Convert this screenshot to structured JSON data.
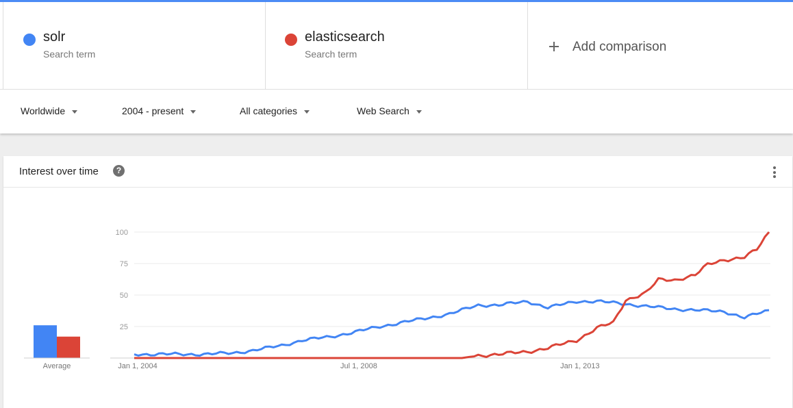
{
  "terms": [
    {
      "name": "solr",
      "subtitle": "Search term",
      "color": "#4285f4"
    },
    {
      "name": "elasticsearch",
      "subtitle": "Search term",
      "color": "#db4437"
    }
  ],
  "add_comparison": {
    "label": "Add comparison",
    "icon": "plus-icon"
  },
  "filters": {
    "region": "Worldwide",
    "time_range": "2004 - present",
    "category": "All categories",
    "search_type": "Web Search"
  },
  "card": {
    "title": "Interest over time",
    "help_icon": "question-circle-icon",
    "menu_icon": "more-vert-icon"
  },
  "chart_data": {
    "type": "line",
    "title": "Interest over time",
    "x_axis": {
      "start": "2004-01",
      "end": "2016-12",
      "interval": "monthly",
      "tick_labels": [
        "Jan 1, 2004",
        "Jul 1, 2008",
        "Jan 1, 2013"
      ]
    },
    "y_axis": {
      "ylim": [
        0,
        100
      ],
      "ticks": [
        25,
        50,
        75,
        100
      ]
    },
    "grid": true,
    "series": [
      {
        "name": "solr",
        "color": "#4285f4",
        "anchors": [
          [
            "2004-01",
            3
          ],
          [
            "2004-06",
            3
          ],
          [
            "2005-01",
            3
          ],
          [
            "2005-06",
            3
          ],
          [
            "2006-01",
            4
          ],
          [
            "2006-06",
            6
          ],
          [
            "2007-01",
            10
          ],
          [
            "2007-06",
            14
          ],
          [
            "2008-01",
            17
          ],
          [
            "2008-06",
            20
          ],
          [
            "2009-01",
            25
          ],
          [
            "2009-06",
            28
          ],
          [
            "2010-01",
            32
          ],
          [
            "2010-06",
            35
          ],
          [
            "2011-01",
            42
          ],
          [
            "2011-06",
            42
          ],
          [
            "2012-01",
            45
          ],
          [
            "2012-06",
            40
          ],
          [
            "2013-01",
            45
          ],
          [
            "2013-06",
            45
          ],
          [
            "2014-01",
            43
          ],
          [
            "2014-06",
            41
          ],
          [
            "2015-01",
            39
          ],
          [
            "2015-06",
            38
          ],
          [
            "2016-01",
            37
          ],
          [
            "2016-06",
            32
          ],
          [
            "2016-12",
            38
          ]
        ]
      },
      {
        "name": "elasticsearch",
        "color": "#db4437",
        "anchors": [
          [
            "2004-01",
            0
          ],
          [
            "2010-09",
            0
          ],
          [
            "2011-01",
            2
          ],
          [
            "2011-06",
            3
          ],
          [
            "2012-01",
            5
          ],
          [
            "2012-06",
            8
          ],
          [
            "2013-01",
            14
          ],
          [
            "2013-06",
            24
          ],
          [
            "2013-10",
            28
          ],
          [
            "2014-01",
            46
          ],
          [
            "2014-06",
            52
          ],
          [
            "2014-09",
            62
          ],
          [
            "2015-01",
            62
          ],
          [
            "2015-06",
            66
          ],
          [
            "2015-09",
            74
          ],
          [
            "2016-01",
            78
          ],
          [
            "2016-06",
            80
          ],
          [
            "2016-09",
            86
          ],
          [
            "2016-12",
            100
          ]
        ]
      }
    ],
    "averages": [
      {
        "name": "solr",
        "value": 26,
        "color": "#4285f4"
      },
      {
        "name": "elasticsearch",
        "value": 17,
        "color": "#db4437"
      }
    ],
    "average_label": "Average"
  }
}
